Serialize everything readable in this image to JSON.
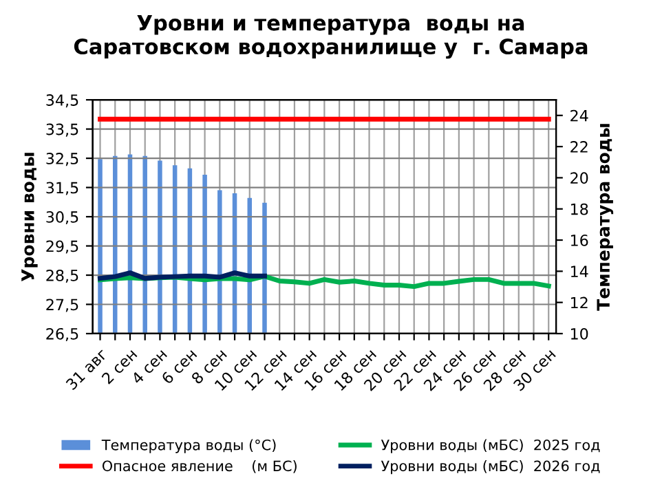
{
  "chart_data": {
    "type": "line",
    "title": "Уровни и температура  воды на\nСаратовском водохранилище у  г. Самара",
    "ylabel": "Уровни воды",
    "y2label": "Температура воды",
    "categories": [
      "31 авг",
      null,
      "2 сен",
      null,
      "4 сен",
      null,
      "6 сен",
      null,
      "8 сен",
      null,
      "10 сен",
      null,
      "12 сен",
      null,
      "14 сен",
      null,
      "16 сен",
      null,
      "18 сен",
      null,
      "20 сен",
      null,
      "22 сен",
      null,
      "24 сен",
      null,
      "26 сен",
      null,
      "28 сен",
      null,
      "30 сен"
    ],
    "ylim": [
      26.5,
      34.5
    ],
    "yticks": [
      {
        "value": 26.5,
        "label": "26,5"
      },
      {
        "value": 27.5,
        "label": "27,5"
      },
      {
        "value": 28.5,
        "label": "28,5"
      },
      {
        "value": 29.5,
        "label": "29,5"
      },
      {
        "value": 30.5,
        "label": "30,5"
      },
      {
        "value": 31.5,
        "label": "31,5"
      },
      {
        "value": 32.5,
        "label": "32,5"
      },
      {
        "value": 33.5,
        "label": "33,5"
      },
      {
        "value": 34.5,
        "label": "34,5"
      }
    ],
    "y2lim": [
      10,
      25
    ],
    "y2ticks": [
      10,
      12,
      14,
      16,
      18,
      20,
      22,
      24
    ],
    "grid": true,
    "legend": "bottom",
    "marker": "none",
    "series": [
      {
        "name": "Температура воды (°C)",
        "type": "bar",
        "axis": "y2",
        "color": "#5b8fd9",
        "values": [
          21.2,
          21.4,
          21.5,
          21.4,
          21.1,
          20.8,
          20.6,
          20.2,
          19.2,
          19.0,
          18.7,
          18.4,
          null,
          null,
          null,
          null,
          null,
          null,
          null,
          null,
          null,
          null,
          null,
          null,
          null,
          null,
          null,
          null,
          null,
          null,
          null
        ]
      },
      {
        "name": "Опасное явление    (м БС)",
        "color": "#ff0000",
        "values": [
          33.84,
          33.84,
          33.84,
          33.84,
          33.84,
          33.84,
          33.84,
          33.84,
          33.84,
          33.84,
          33.84,
          33.84,
          33.84,
          33.84,
          33.84,
          33.84,
          33.84,
          33.84,
          33.84,
          33.84,
          33.84,
          33.84,
          33.84,
          33.84,
          33.84,
          33.84,
          33.84,
          33.84,
          33.84,
          33.84,
          33.84
        ]
      },
      {
        "name": "Уровни воды (мБС)  2025 год",
        "color": "#00b050",
        "values": [
          28.34,
          28.38,
          28.41,
          28.38,
          28.41,
          28.43,
          28.38,
          28.34,
          28.38,
          28.38,
          28.34,
          28.46,
          28.3,
          28.27,
          28.22,
          28.35,
          28.26,
          28.3,
          28.22,
          28.16,
          28.16,
          28.11,
          28.22,
          28.22,
          28.29,
          28.35,
          28.35,
          28.22,
          28.22,
          28.22,
          28.13
        ]
      },
      {
        "name": "Уровни воды (мБС)  2026 год",
        "color": "#002060",
        "values": [
          28.39,
          28.45,
          28.58,
          28.39,
          28.43,
          28.45,
          28.47,
          28.47,
          28.43,
          28.58,
          28.47,
          28.47,
          null,
          null,
          null,
          null,
          null,
          null,
          null,
          null,
          null,
          null,
          null,
          null,
          null,
          null,
          null,
          null,
          null,
          null,
          null
        ]
      }
    ]
  }
}
